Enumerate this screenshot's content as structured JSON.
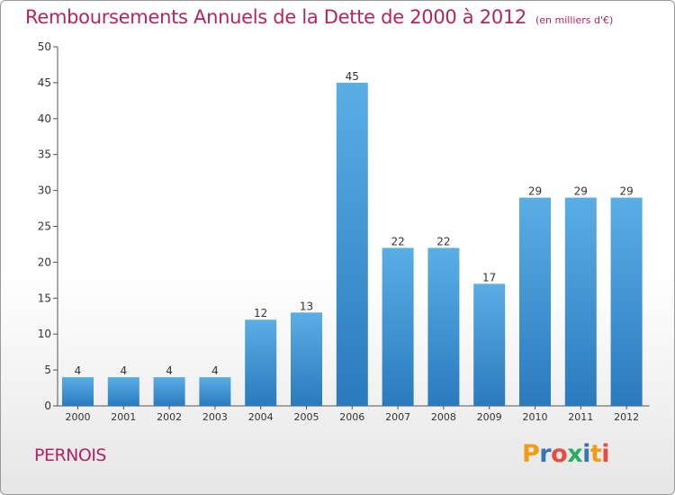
{
  "header": {
    "title": "Remboursements Annuels de la Dette de 2000 à 2012",
    "subtitle": "(en milliers d'€)"
  },
  "footer": {
    "commune": "PERNOIS",
    "logo": "Proxiti"
  },
  "colors": {
    "accent": "#b5245f",
    "bar_top": "#5aaee6",
    "bar_bottom": "#2a7abd",
    "logo_letters": [
      "#f39c12",
      "#3b73b9",
      "#e74c3c",
      "#27ae60",
      "#3b73b9",
      "#f39c12",
      "#e74c3c"
    ]
  },
  "chart_data": {
    "type": "bar",
    "categories": [
      "2000",
      "2001",
      "2002",
      "2003",
      "2004",
      "2005",
      "2006",
      "2007",
      "2008",
      "2009",
      "2010",
      "2011",
      "2012"
    ],
    "values": [
      4,
      4,
      4,
      4,
      12,
      13,
      45,
      22,
      22,
      17,
      29,
      29,
      29
    ],
    "data_labels": [
      "4",
      "4",
      "4",
      "4",
      "12",
      "13",
      "45",
      "22",
      "22",
      "17",
      "29",
      "29",
      "29"
    ],
    "y_ticks": [
      "0",
      "5",
      "10",
      "15",
      "20",
      "25",
      "30",
      "35",
      "40",
      "45",
      "50"
    ],
    "ylim": [
      0,
      50
    ],
    "grid": false
  }
}
